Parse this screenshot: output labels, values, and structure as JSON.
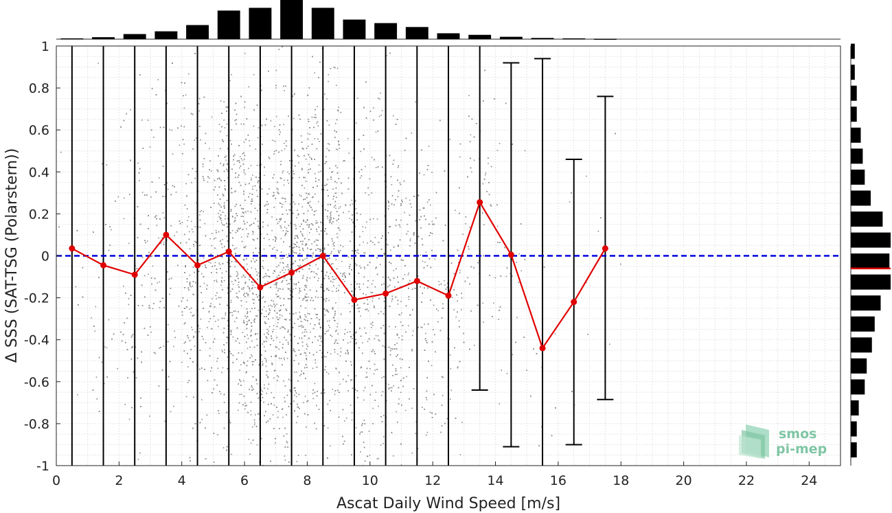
{
  "chart_data": {
    "type": "scatter",
    "xlabel": "Ascat Daily Wind Speed [m/s]",
    "ylabel": "Δ SSS (SAT-TSG (Polarstern))",
    "xlim": [
      0,
      25
    ],
    "ylim": [
      -1,
      1
    ],
    "xticks": [
      "0",
      "2",
      "4",
      "6",
      "8",
      "10",
      "12",
      "14",
      "16",
      "18",
      "20",
      "22",
      "24"
    ],
    "yticks": [
      "1",
      "0.8",
      "0.6",
      "0.4",
      "0.2",
      "0",
      "-0.2",
      "-0.4",
      "-0.6",
      "-0.8",
      "-1"
    ],
    "grid": true,
    "reference_line": {
      "y": 0,
      "style": "dashed",
      "color": "#0000dd"
    },
    "mean_series": {
      "color": "#e00000",
      "x": [
        0.5,
        1.5,
        2.5,
        3.5,
        4.5,
        5.5,
        6.5,
        7.5,
        8.5,
        9.5,
        10.5,
        11.5,
        12.5,
        13.5,
        14.5,
        15.5,
        16.5,
        17.5
      ],
      "y": [
        0.035,
        -0.045,
        -0.09,
        0.1,
        -0.045,
        0.02,
        -0.15,
        -0.08,
        0.0,
        -0.21,
        -0.18,
        -0.12,
        -0.19,
        0.255,
        0.005,
        -0.44,
        -0.22,
        0.035
      ]
    },
    "error_bars": {
      "x": [
        0.5,
        1.5,
        2.5,
        3.5,
        4.5,
        5.5,
        6.5,
        7.5,
        8.5,
        9.5,
        10.5,
        11.5,
        12.5,
        13.5,
        14.5,
        15.5,
        16.5,
        17.5
      ],
      "upper": [
        1,
        1,
        1,
        1,
        1,
        1,
        1,
        1,
        1,
        1,
        1,
        1,
        1,
        1,
        0.92,
        0.94,
        0.46,
        0.76
      ],
      "lower": [
        -1,
        -1,
        -1,
        -1,
        -1,
        -1,
        -1,
        -1,
        -1,
        -1,
        -1,
        -1,
        -1,
        -0.64,
        -0.91,
        -1,
        -0.9,
        -0.685
      ]
    },
    "x_histogram": {
      "x": [
        0.5,
        1.5,
        2.5,
        3.5,
        4.5,
        5.5,
        6.5,
        7.5,
        8.5,
        9.5,
        10.5,
        11.5,
        12.5,
        13.5,
        14.5,
        15.5,
        16.5,
        17.5
      ],
      "counts": [
        0.02,
        0.05,
        0.13,
        0.2,
        0.36,
        0.73,
        0.8,
        1.0,
        0.8,
        0.5,
        0.41,
        0.31,
        0.15,
        0.11,
        0.06,
        0.03,
        0.02,
        0.01
      ]
    },
    "y_histogram": {
      "y": [
        0.975,
        0.875,
        0.775,
        0.675,
        0.575,
        0.475,
        0.375,
        0.275,
        0.175,
        0.075,
        -0.025,
        -0.125,
        -0.225,
        -0.325,
        -0.425,
        -0.525,
        -0.625,
        -0.725,
        -0.825,
        -0.925
      ],
      "counts": [
        0.1,
        0.1,
        0.15,
        0.15,
        0.25,
        0.3,
        0.35,
        0.5,
        0.8,
        1.0,
        0.97,
        1.0,
        0.75,
        0.6,
        0.53,
        0.4,
        0.35,
        0.2,
        0.15,
        0.15
      ],
      "median": -0.06,
      "median_color": "#e00000"
    },
    "scatter_color": "#8c8c8c"
  },
  "logo": {
    "line1": "smos",
    "line2": "pi-mep",
    "color": "#7fc6a4"
  }
}
